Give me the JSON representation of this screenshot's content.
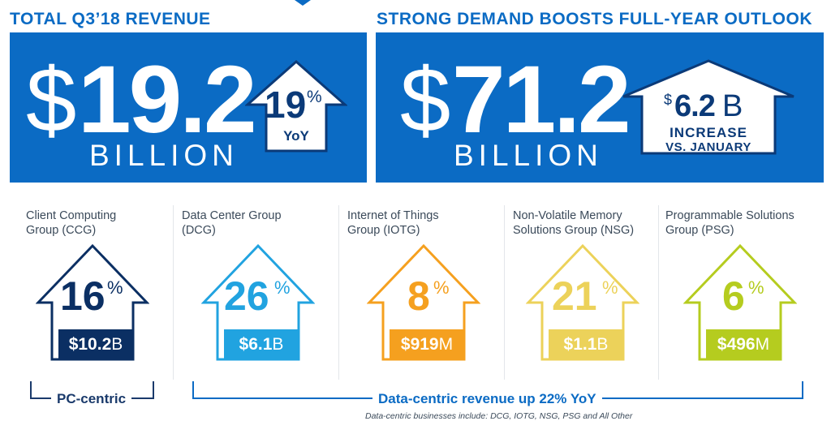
{
  "headlines": {
    "left": "TOTAL Q3’18 REVENUE",
    "right": "STRONG DEMAND BOOSTS FULL-YEAR OUTLOOK"
  },
  "q3_revenue": {
    "currency": "$",
    "amount": "19.2",
    "unit": "BILLION",
    "growth_value": "19",
    "growth_sign": "%",
    "growth_label": "YoY"
  },
  "outlook": {
    "currency": "$",
    "amount": "71.2",
    "unit": "BILLION",
    "increase_currency": "$",
    "increase_value": "6.2",
    "increase_unit": "B",
    "increase_line1": "INCREASE",
    "increase_line2": "VS. JANUARY"
  },
  "segments": [
    {
      "name_line1": "Client Computing",
      "name_line2": "Group (CCG)",
      "growth": "16",
      "growth_sign": "%",
      "revenue_value": "$10.2",
      "revenue_unit": "B",
      "color": "#0b2f63"
    },
    {
      "name_line1": "Data Center Group",
      "name_line2": "(DCG)",
      "growth": "26",
      "growth_sign": "%",
      "revenue_value": "$6.1",
      "revenue_unit": "B",
      "color": "#21a3e0"
    },
    {
      "name_line1": "Internet of Things",
      "name_line2": "Group (IOTG)",
      "growth": "8",
      "growth_sign": "%",
      "revenue_value": "$919",
      "revenue_unit": "M",
      "color": "#f5a01f"
    },
    {
      "name_line1": "Non-Volatile Memory",
      "name_line2": "Solutions Group (NSG)",
      "growth": "21",
      "growth_sign": "%",
      "revenue_value": "$1.1",
      "revenue_unit": "B",
      "color": "#ecd25a"
    },
    {
      "name_line1": "Programmable Solutions",
      "name_line2": "Group (PSG)",
      "growth": "6",
      "growth_sign": "%",
      "revenue_value": "$496",
      "revenue_unit": "M",
      "color": "#b5cc1f"
    }
  ],
  "brackets": {
    "pc_label": "PC-centric",
    "data_label": "Data-centric revenue up 22% YoY",
    "footnote": "Data-centric businesses include: DCG, IOTG, NSG, PSG and All Other"
  },
  "colors": {
    "brand_blue": "#0b6bc4",
    "dark_navy": "#0b3a78"
  }
}
